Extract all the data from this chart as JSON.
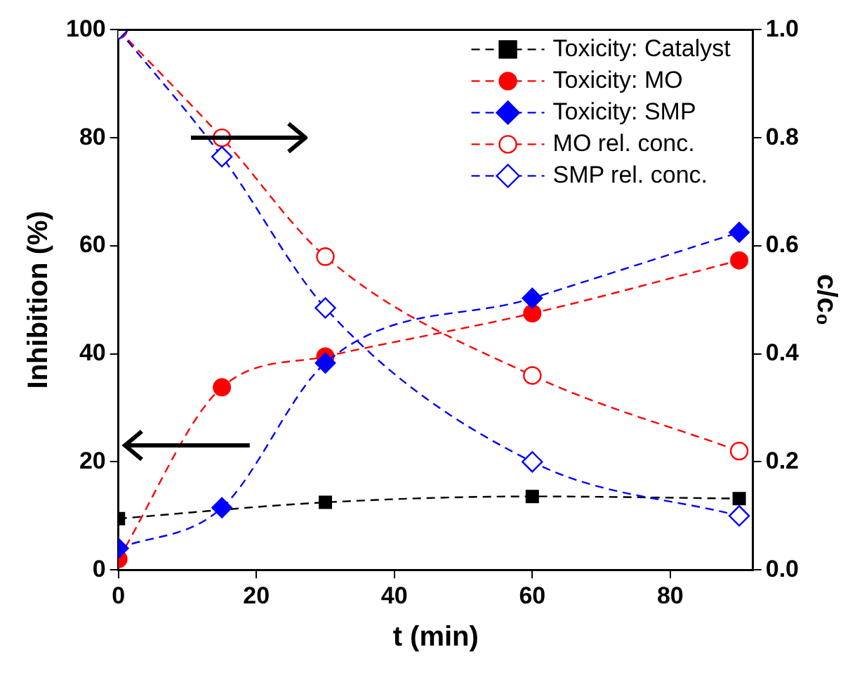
{
  "chart_data": {
    "type": "line",
    "xlabel": "t (min)",
    "ylabel": "Inhibition (%)",
    "y2label": "c/c₀",
    "xlim": [
      0,
      92
    ],
    "xticks": [
      0,
      20,
      40,
      60,
      80
    ],
    "ylim": [
      0,
      100
    ],
    "yticks": [
      0,
      20,
      40,
      60,
      80,
      100
    ],
    "y2lim": [
      0,
      1
    ],
    "y2ticks": [
      {
        "value": 0,
        "label": "0.0"
      },
      {
        "value": 0.2,
        "label": "0.2"
      },
      {
        "value": 0.4,
        "label": "0.4"
      },
      {
        "value": 0.6,
        "label": "0.6"
      },
      {
        "value": 0.8,
        "label": "0.8"
      },
      {
        "value": 1,
        "label": "1.0"
      }
    ],
    "grid": false,
    "legend": "top right",
    "line_style": "dashed",
    "series": [
      {
        "name": "Toxicity: Catalyst",
        "color": "#000000",
        "marker": "square",
        "x": [
          0,
          30,
          60,
          90
        ],
        "values": [
          9.5,
          12.5,
          13.6,
          13.2
        ]
      },
      {
        "name": "Toxicity: MO",
        "color": "#ff0000",
        "marker": "circle",
        "x": [
          0,
          15,
          30,
          60,
          90
        ],
        "values": [
          2,
          33.8,
          39.5,
          47.5,
          57.3
        ]
      },
      {
        "name": "Toxicity: SMP",
        "color": "#0000ff",
        "marker": "diamond",
        "x": [
          0,
          15,
          30,
          60,
          90
        ],
        "values": [
          4,
          11.5,
          38.3,
          50.3,
          62.5
        ]
      },
      {
        "name": "MO rel. conc.",
        "color": "#ff0000",
        "marker": "circle",
        "axis": "y2",
        "x": [
          0,
          15,
          30,
          60,
          90
        ],
        "values": [
          1.0,
          0.8,
          0.58,
          0.36,
          0.22
        ]
      },
      {
        "name": "SMP rel. conc.",
        "color": "#0000ff",
        "marker": "diamond",
        "axis": "y2",
        "x": [
          0,
          15,
          30,
          60,
          90
        ],
        "values": [
          1.0,
          0.765,
          0.485,
          0.2,
          0.1
        ]
      }
    ]
  }
}
